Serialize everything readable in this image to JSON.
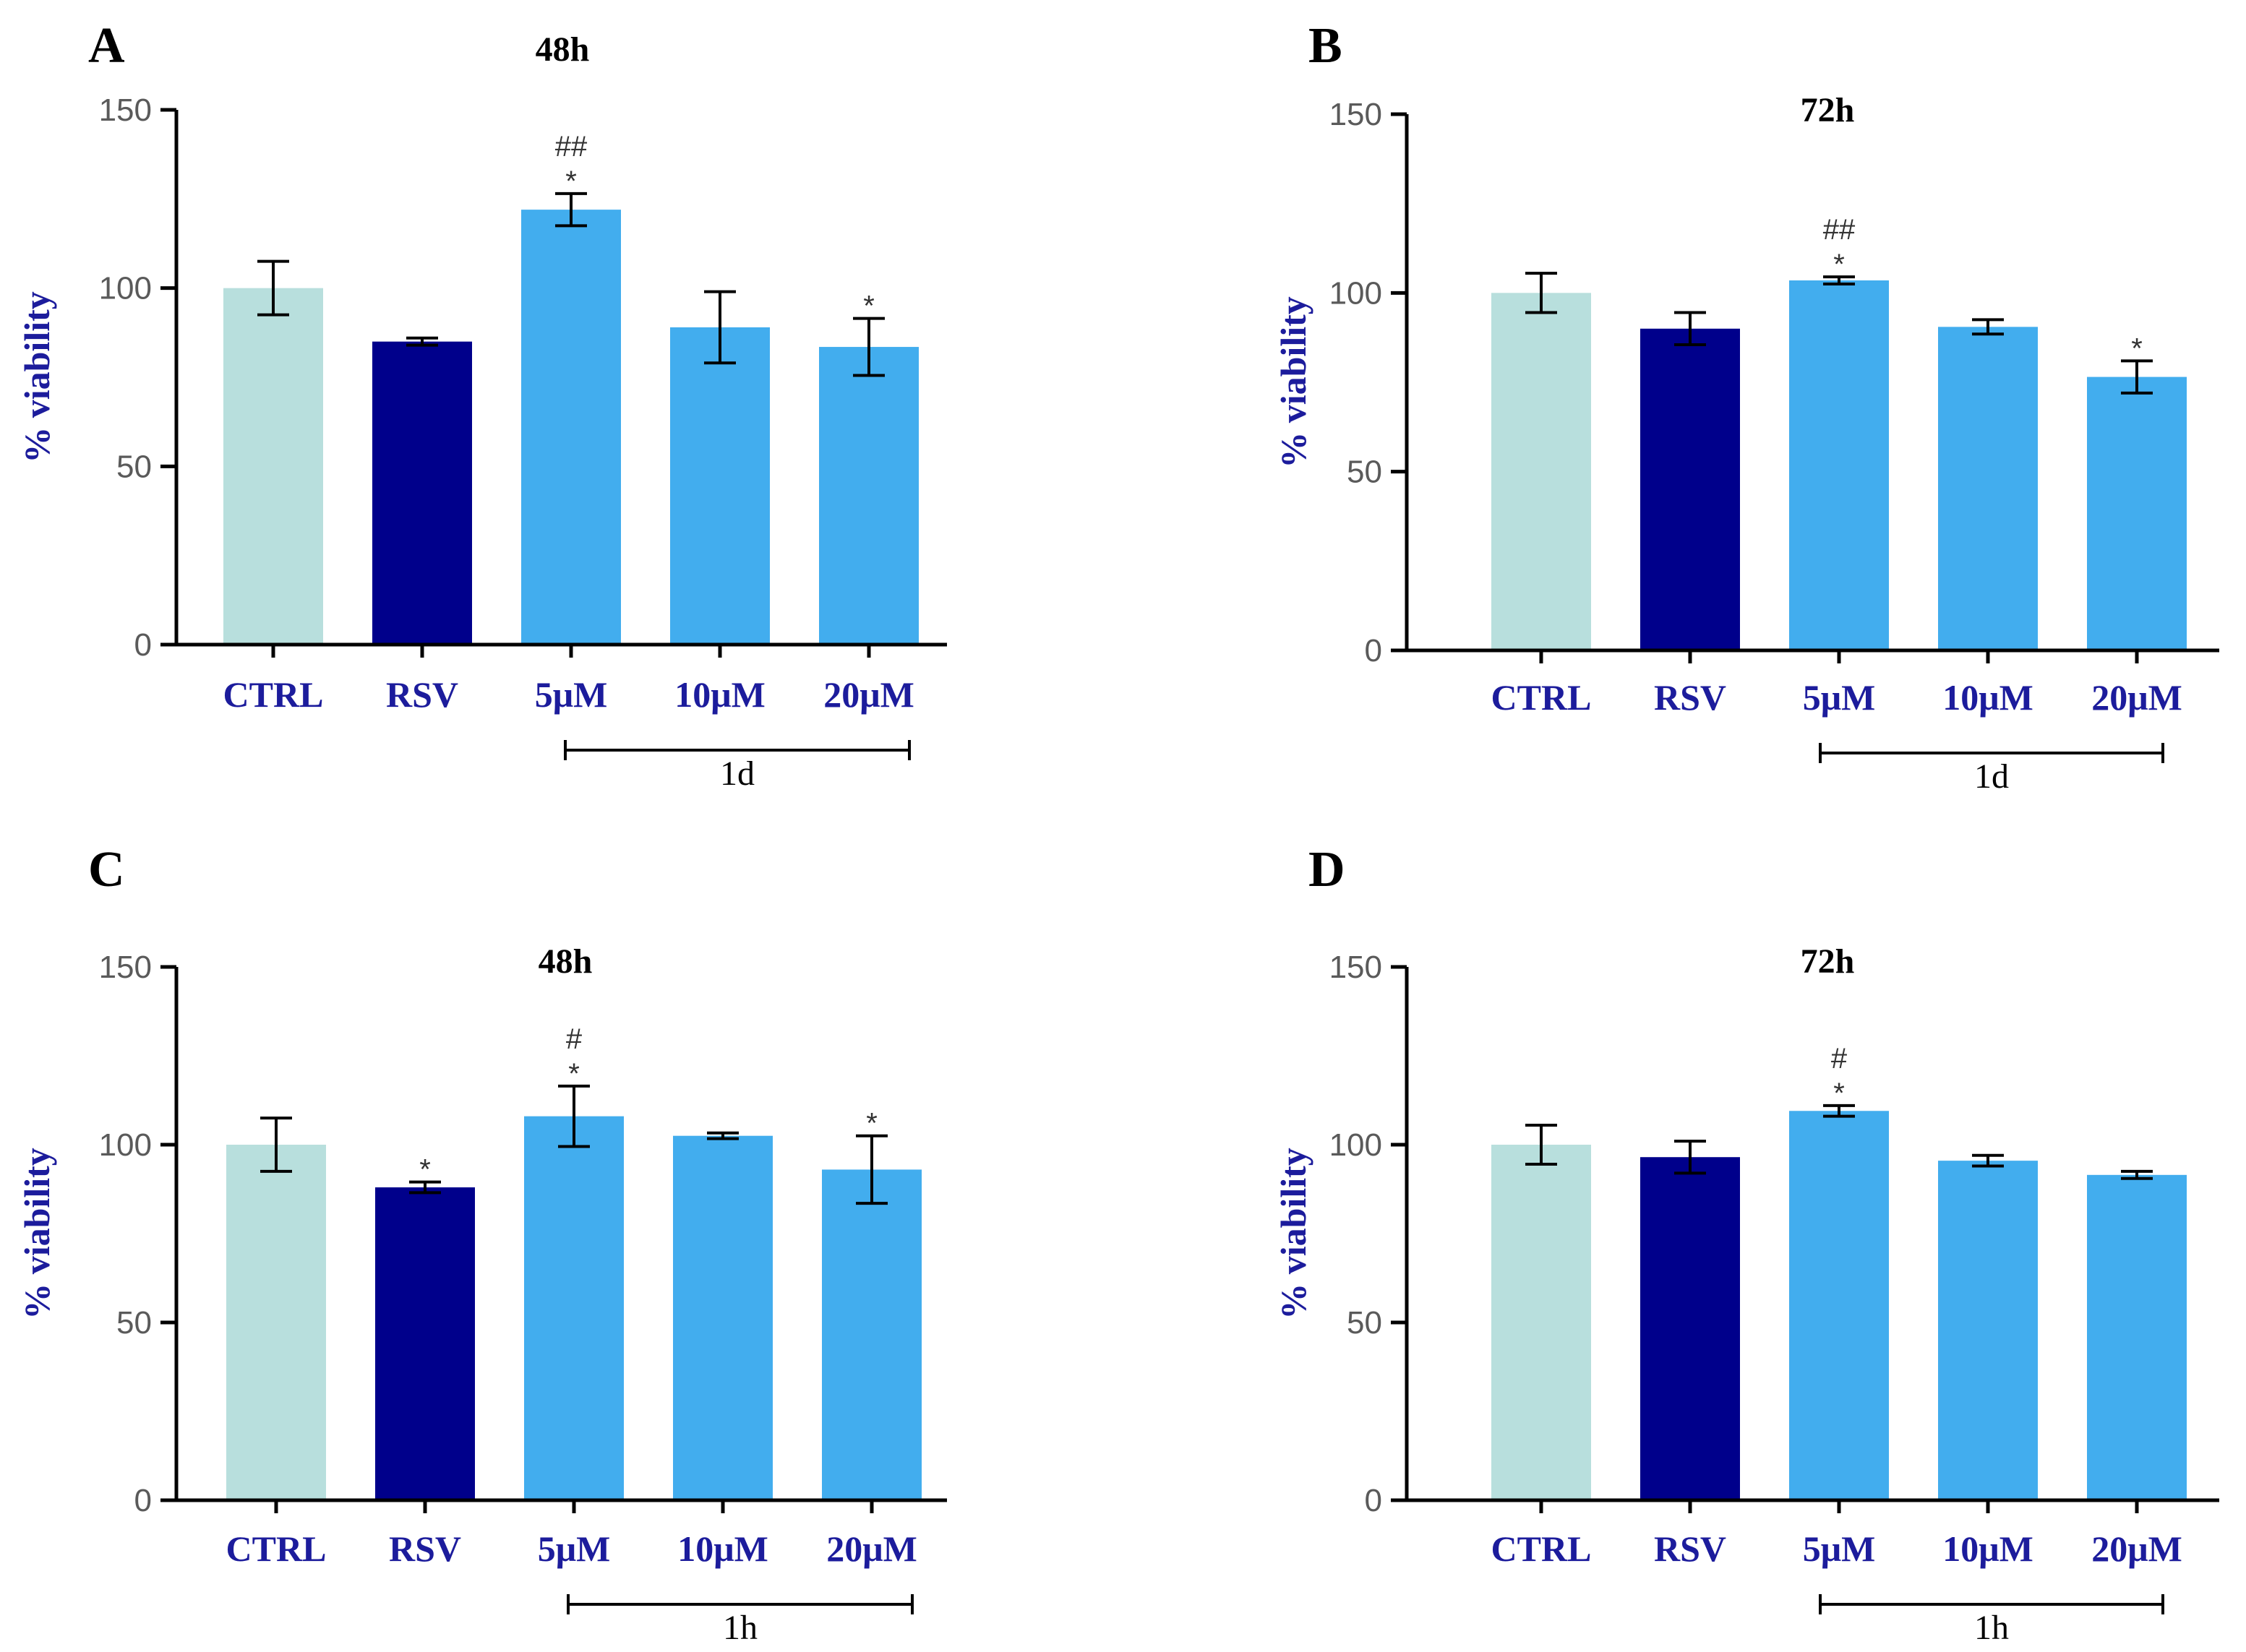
{
  "chart_data": [
    {
      "panel": "A",
      "type": "bar",
      "title": "48h",
      "ylabel": "% viability",
      "xlabel": "",
      "ylim": [
        0,
        150
      ],
      "yticks": [
        0,
        50,
        100,
        150
      ],
      "categories": [
        "CTRL",
        "RSV",
        "5μM",
        "10μM",
        "20μM"
      ],
      "values": [
        100,
        85,
        122,
        89,
        83.5
      ],
      "errors": [
        7.5,
        1,
        4.5,
        10,
        8
      ],
      "colors": [
        "#b8dfdd",
        "#00008b",
        "#42adee",
        "#42adee",
        "#42adee"
      ],
      "annotations": [
        [
          "",
          ""
        ],
        [
          "",
          ""
        ],
        [
          "##",
          "*"
        ],
        [
          "",
          ""
        ],
        [
          "",
          "*"
        ]
      ],
      "group_label": "1d",
      "group_range": [
        2,
        4
      ]
    },
    {
      "panel": "B",
      "type": "bar",
      "title": "72h",
      "ylabel": "% viability",
      "xlabel": "",
      "ylim": [
        0,
        150
      ],
      "yticks": [
        0,
        50,
        100,
        150
      ],
      "categories": [
        "CTRL",
        "RSV",
        "5μM",
        "10μM",
        "20μM"
      ],
      "values": [
        100,
        90,
        103.5,
        90.5,
        76.5
      ],
      "errors": [
        5.5,
        4.5,
        1,
        2,
        4.5
      ],
      "colors": [
        "#b8dfdd",
        "#00008b",
        "#42adee",
        "#42adee",
        "#42adee"
      ],
      "annotations": [
        [
          "",
          ""
        ],
        [
          "",
          ""
        ],
        [
          "##",
          "*"
        ],
        [
          "",
          ""
        ],
        [
          "",
          "*"
        ]
      ],
      "group_label": "1d",
      "group_range": [
        2,
        4
      ]
    },
    {
      "panel": "C",
      "type": "bar",
      "title": "48h",
      "ylabel": "% viability",
      "xlabel": "",
      "ylim": [
        0,
        150
      ],
      "yticks": [
        0,
        50,
        100,
        150
      ],
      "categories": [
        "CTRL",
        "RSV",
        "5μM",
        "10μM",
        "20μM"
      ],
      "values": [
        100,
        88,
        108,
        102.5,
        93
      ],
      "errors": [
        7.5,
        1.5,
        8.5,
        0.8,
        9.5
      ],
      "colors": [
        "#b8dfdd",
        "#00008b",
        "#42adee",
        "#42adee",
        "#42adee"
      ],
      "annotations": [
        [
          "",
          ""
        ],
        [
          "",
          "*"
        ],
        [
          "#",
          "*"
        ],
        [
          "",
          ""
        ],
        [
          "",
          "*"
        ]
      ],
      "group_label": "1h",
      "group_range": [
        2,
        4
      ]
    },
    {
      "panel": "D",
      "type": "bar",
      "title": "72h",
      "ylabel": "% viability",
      "xlabel": "",
      "ylim": [
        0,
        150
      ],
      "yticks": [
        0,
        50,
        100,
        150
      ],
      "categories": [
        "CTRL",
        "RSV",
        "5μM",
        "10μM",
        "20μM"
      ],
      "values": [
        100,
        96.5,
        109.5,
        95.5,
        91.5
      ],
      "errors": [
        5.5,
        4.5,
        1.5,
        1.5,
        1
      ],
      "colors": [
        "#b8dfdd",
        "#00008b",
        "#42adee",
        "#42adee",
        "#42adee"
      ],
      "annotations": [
        [
          "",
          ""
        ],
        [
          "",
          ""
        ],
        [
          "#",
          "*"
        ],
        [
          "",
          ""
        ],
        [
          "",
          ""
        ]
      ],
      "group_label": "1h",
      "group_range": [
        2,
        4
      ]
    }
  ]
}
